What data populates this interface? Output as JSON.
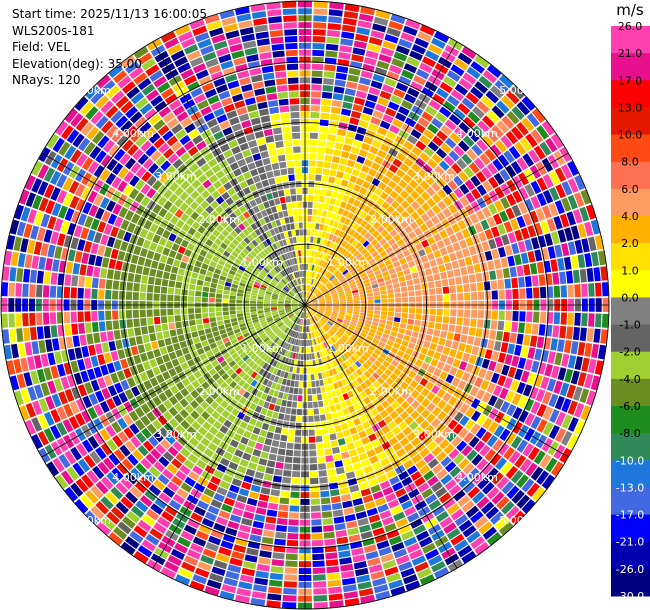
{
  "info": {
    "start_time": "Start time: 2025/11/13 16:00:05",
    "site": "WLS200s-181",
    "field": "Field: VEL",
    "elevation": "Elevation(deg): 35.00",
    "nrays": "NRays: 120"
  },
  "chart_data": {
    "type": "heatmap",
    "projection": "polar-ppi",
    "title": "",
    "field": "VEL",
    "elevation_deg": 35.0,
    "n_rays": 120,
    "max_range_km": 5.0,
    "range_ring_labels": [
      "1.00km",
      "2.00km",
      "3.00km",
      "4.00km",
      "5.00km"
    ],
    "range_ring_km": [
      1,
      2,
      3,
      4,
      5
    ],
    "colorbar": {
      "unit": "m/s",
      "tick_labels": [
        "26.0",
        "21.0",
        "17.0",
        "13.0",
        "10.0",
        "8.0",
        "6.0",
        "4.0",
        "2.0",
        "1.0",
        "0.0",
        "-1.0",
        "-2.0",
        "-4.0",
        "-6.0",
        "-8.0",
        "-10.0",
        "-13.0",
        "-17.0",
        "-21.0",
        "-26.0",
        "-30.0"
      ],
      "colors_top_to_bottom": [
        "#ff3fb0",
        "#e8108e",
        "#ff0000",
        "#e61800",
        "#ff4a14",
        "#ff7050",
        "#ff9a60",
        "#ffb000",
        "#ffe000",
        "#ffff00",
        "#808080",
        "#646464",
        "#a0d030",
        "#6b8e23",
        "#1e8c1e",
        "#2e8b57",
        "#1e78dc",
        "#4169e1",
        "#0000ff",
        "#0000b0",
        "#000080"
      ]
    },
    "wind": {
      "pattern": "radial velocity dipole",
      "positive_side": "east",
      "negative_side": "west",
      "valid_range_km": 3.2
    }
  }
}
